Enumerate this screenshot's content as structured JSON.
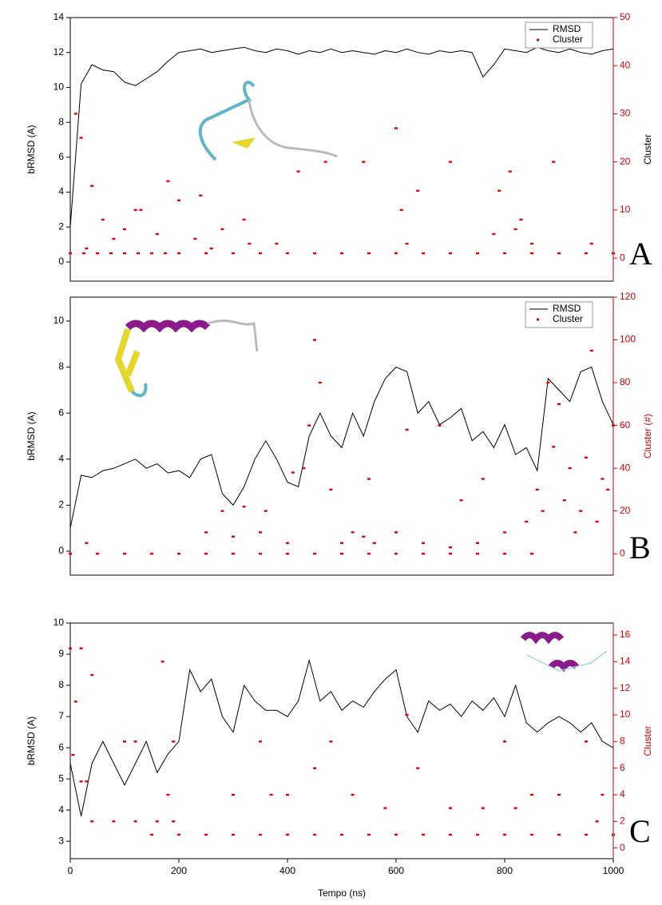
{
  "chart_data": [
    {
      "type": "line",
      "ylabel": "bRMSD (A)",
      "y2label": "Cluster",
      "y2label_color": "#000000",
      "annotation": "A",
      "legend": "upper right",
      "xlim": [
        0,
        1000
      ],
      "ylim": [
        -1.1,
        14
      ],
      "yticks": [
        0,
        2,
        4,
        6,
        8,
        10,
        12,
        14
      ],
      "y2lim": [
        -4.8,
        50
      ],
      "y2ticks": [
        0,
        10,
        20,
        30,
        40,
        50
      ],
      "y2tick_color": "#e00000",
      "series": [
        {
          "name": "RMSD",
          "color": "#000000",
          "x": [
            0,
            20,
            40,
            60,
            80,
            100,
            120,
            140,
            160,
            180,
            200,
            220,
            240,
            260,
            280,
            300,
            320,
            340,
            360,
            380,
            400,
            420,
            440,
            460,
            480,
            500,
            520,
            540,
            560,
            580,
            600,
            620,
            640,
            660,
            680,
            700,
            720,
            740,
            760,
            780,
            800,
            820,
            840,
            860,
            880,
            900,
            920,
            940,
            960,
            980,
            1000
          ],
          "values": [
            2,
            10.2,
            11.3,
            11,
            10.9,
            10.3,
            10.1,
            10.5,
            10.9,
            11.5,
            12,
            12.1,
            12.2,
            12,
            12.1,
            12.2,
            12.3,
            12.1,
            12,
            12.2,
            12.1,
            11.9,
            12.1,
            12,
            12.2,
            12,
            12.1,
            12,
            11.9,
            12.1,
            12,
            12.2,
            12,
            11.9,
            12.1,
            12,
            12.1,
            12,
            10.6,
            11.3,
            12.2,
            12.1,
            12,
            12.3,
            12.1,
            12,
            12.2,
            12,
            11.9,
            12.1,
            12.2
          ]
        },
        {
          "name": "Cluster",
          "type": "scatter",
          "axis": "y2",
          "color": "#e00000",
          "x": [
            0,
            25,
            50,
            75,
            100,
            125,
            150,
            175,
            200,
            250,
            300,
            350,
            400,
            450,
            500,
            550,
            600,
            650,
            700,
            750,
            800,
            850,
            900,
            950,
            1000,
            10,
            20,
            40,
            60,
            80,
            120,
            160,
            200,
            240,
            280,
            330,
            380,
            420,
            470,
            540,
            600,
            610,
            620,
            640,
            700,
            780,
            810,
            830,
            890,
            960,
            30,
            100,
            130,
            180,
            230,
            260,
            320,
            790,
            820,
            850
          ],
          "values": [
            1,
            1,
            1,
            1,
            1,
            1,
            1,
            1,
            1,
            1,
            1,
            1,
            1,
            1,
            1,
            1,
            1,
            1,
            1,
            1,
            1,
            1,
            1,
            1,
            1,
            30,
            25,
            15,
            8,
            4,
            10,
            5,
            12,
            13,
            6,
            3,
            3,
            18,
            20,
            20,
            27,
            10,
            3,
            14,
            20,
            5,
            18,
            8,
            20,
            3,
            2,
            6,
            10,
            16,
            4,
            2,
            8,
            14,
            6,
            3
          ]
        }
      ]
    },
    {
      "type": "line",
      "ylabel": "bRMSD (A)",
      "y2label": "Cluster (#)",
      "y2label_color": "#e00000",
      "annotation": "B",
      "legend": "upper right",
      "xlim": [
        0,
        1000
      ],
      "ylim": [
        -1.04,
        11.04
      ],
      "yticks": [
        0,
        2,
        4,
        6,
        8,
        10
      ],
      "y2lim": [
        -10,
        120
      ],
      "y2ticks": [
        0,
        20,
        40,
        60,
        80,
        100,
        120
      ],
      "y2tick_color": "#e00000",
      "series": [
        {
          "name": "RMSD",
          "color": "#000000",
          "x": [
            0,
            20,
            40,
            60,
            80,
            100,
            120,
            140,
            160,
            180,
            200,
            220,
            240,
            260,
            280,
            300,
            320,
            340,
            360,
            380,
            400,
            420,
            440,
            460,
            480,
            500,
            520,
            540,
            560,
            580,
            600,
            620,
            640,
            660,
            680,
            700,
            720,
            740,
            760,
            780,
            800,
            820,
            840,
            860,
            880,
            900,
            920,
            940,
            960,
            980,
            1000
          ],
          "values": [
            1,
            3.3,
            3.2,
            3.5,
            3.6,
            3.8,
            4,
            3.6,
            3.8,
            3.4,
            3.5,
            3.2,
            4,
            4.2,
            2.5,
            2,
            2.8,
            4,
            4.8,
            4,
            3,
            2.8,
            5,
            6,
            5,
            4.5,
            6,
            5,
            6.5,
            7.5,
            8,
            7.8,
            6,
            6.5,
            5.5,
            5.8,
            6.2,
            4.8,
            5.2,
            4.5,
            5.5,
            4.2,
            4.5,
            3.5,
            7.5,
            7,
            6.5,
            7.8,
            8,
            6.5,
            5.5
          ]
        },
        {
          "name": "Cluster",
          "type": "scatter",
          "axis": "y2",
          "color": "#e00000",
          "x": [
            0,
            50,
            100,
            150,
            200,
            250,
            300,
            350,
            400,
            450,
            500,
            550,
            600,
            650,
            700,
            750,
            800,
            850,
            250,
            300,
            350,
            400,
            430,
            440,
            460,
            480,
            500,
            520,
            540,
            560,
            600,
            620,
            650,
            700,
            750,
            800,
            840,
            860,
            880,
            900,
            920,
            940,
            960,
            980,
            1000,
            30,
            280,
            320,
            360,
            410,
            450,
            550,
            680,
            720,
            760,
            870,
            890,
            910,
            930,
            950,
            970,
            990
          ],
          "values": [
            0,
            0,
            0,
            0,
            0,
            0,
            0,
            0,
            0,
            0,
            0,
            0,
            0,
            0,
            0,
            0,
            0,
            0,
            10,
            8,
            10,
            5,
            40,
            60,
            80,
            30,
            5,
            10,
            8,
            5,
            10,
            58,
            5,
            3,
            5,
            10,
            15,
            30,
            80,
            70,
            40,
            20,
            95,
            35,
            60,
            5,
            20,
            22,
            20,
            38,
            100,
            35,
            60,
            25,
            35,
            20,
            50,
            25,
            10,
            45,
            15,
            30
          ]
        }
      ]
    },
    {
      "type": "line",
      "ylabel": "bRMSD (A)",
      "y2label": "Cluster",
      "y2label_color": "#e00000",
      "xlabel": "Tempo (ns)",
      "annotation": "C",
      "xlim": [
        0,
        1000
      ],
      "xticks": [
        0,
        200,
        400,
        600,
        800,
        1000
      ],
      "ylim": [
        2.44,
        10
      ],
      "yticks": [
        3,
        4,
        5,
        6,
        7,
        8,
        9,
        10
      ],
      "y2lim": [
        -0.8,
        16.9
      ],
      "y2ticks": [
        0,
        2,
        4,
        6,
        8,
        10,
        12,
        14,
        16
      ],
      "y2tick_color": "#e00000",
      "series": [
        {
          "color": "#000000",
          "x": [
            0,
            20,
            40,
            60,
            80,
            100,
            120,
            140,
            160,
            180,
            200,
            220,
            240,
            260,
            280,
            300,
            320,
            340,
            360,
            380,
            400,
            420,
            440,
            460,
            480,
            500,
            520,
            540,
            560,
            580,
            600,
            620,
            640,
            660,
            680,
            700,
            720,
            740,
            760,
            780,
            800,
            820,
            840,
            860,
            880,
            900,
            920,
            940,
            960,
            980,
            1000
          ],
          "values": [
            5.5,
            3.8,
            5.5,
            6.2,
            5.5,
            4.8,
            5.5,
            6.2,
            5.2,
            5.8,
            6.2,
            8.5,
            7.8,
            8.2,
            7,
            6.5,
            8,
            7.5,
            7.2,
            7.2,
            7,
            7.5,
            8.8,
            7.5,
            7.8,
            7.2,
            7.5,
            7.3,
            7.8,
            8.2,
            8.5,
            7,
            6.5,
            7.5,
            7.2,
            7.4,
            7,
            7.5,
            7.2,
            7.6,
            7,
            8,
            6.8,
            6.5,
            6.8,
            7,
            6.8,
            6.5,
            6.8,
            6.2,
            6
          ]
        },
        {
          "type": "scatter",
          "axis": "y2",
          "color": "#e00000",
          "x": [
            150,
            200,
            250,
            300,
            350,
            400,
            450,
            500,
            550,
            600,
            650,
            700,
            750,
            800,
            850,
            900,
            950,
            1000,
            0,
            10,
            20,
            30,
            40,
            80,
            120,
            160,
            190,
            5,
            20,
            40,
            100,
            120,
            170,
            190,
            180,
            300,
            350,
            370,
            400,
            450,
            480,
            520,
            580,
            620,
            640,
            700,
            760,
            800,
            820,
            850,
            900,
            950,
            980,
            970
          ],
          "values": [
            1,
            1,
            1,
            1,
            1,
            1,
            1,
            1,
            1,
            1,
            1,
            1,
            1,
            1,
            1,
            1,
            1,
            1,
            15,
            11,
            5,
            5,
            2,
            2,
            2,
            2,
            2,
            7,
            15,
            13,
            8,
            8,
            14,
            8,
            4,
            4,
            8,
            4,
            4,
            6,
            8,
            4,
            3,
            10,
            6,
            3,
            3,
            8,
            3,
            4,
            4,
            8,
            4,
            2
          ]
        }
      ]
    }
  ]
}
